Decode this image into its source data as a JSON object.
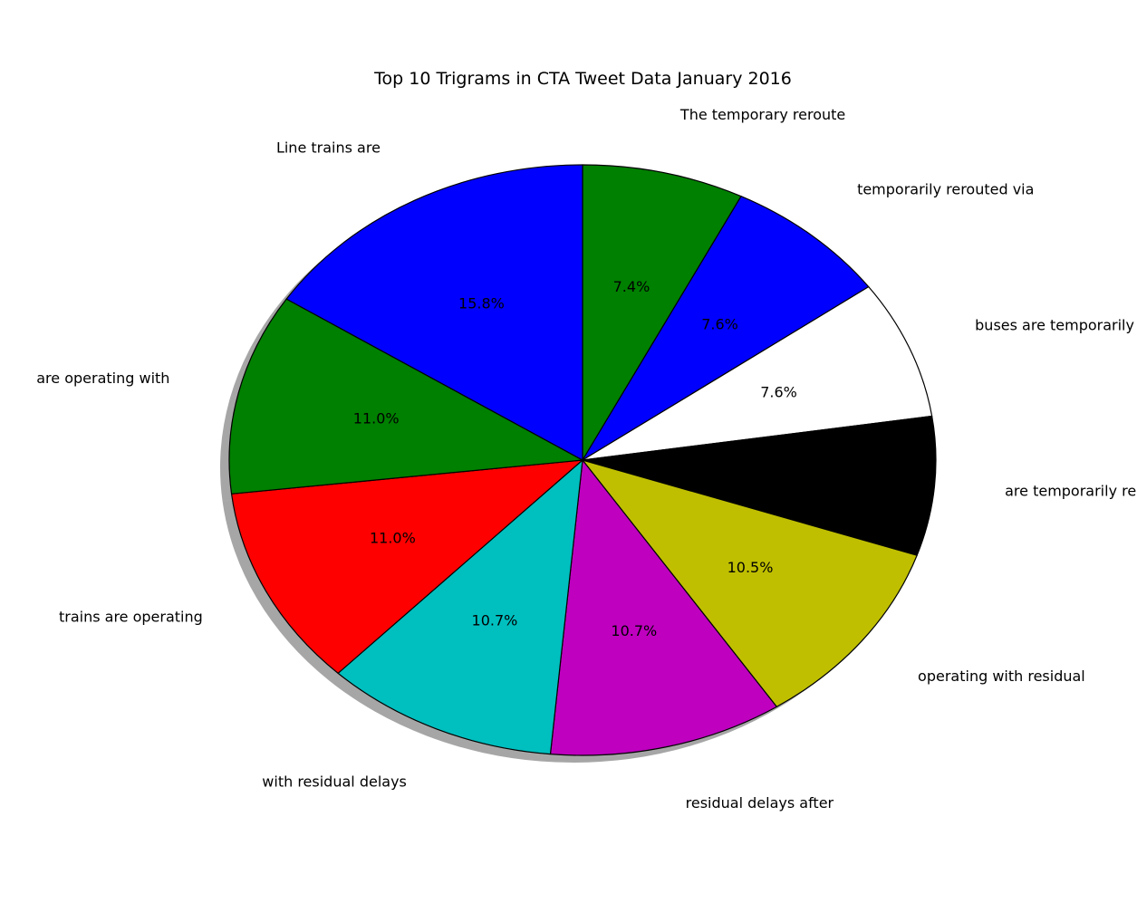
{
  "chart_data": {
    "type": "pie",
    "title": "Top 10 Trigrams in CTA Tweet Data January 2016",
    "slices": [
      {
        "label": "The temporary reroute",
        "value": 7.4,
        "pct_label": "7.4%",
        "color": "#008000"
      },
      {
        "label": "temporarily rerouted via",
        "value": 7.6,
        "pct_label": "7.6%",
        "color": "#0000ff"
      },
      {
        "label": "buses are temporarily",
        "value": 7.6,
        "pct_label": "7.6%",
        "color": "#ffffff"
      },
      {
        "label": "are temporarily rerouted",
        "value": 7.6,
        "pct_label": "",
        "color": "#000000"
      },
      {
        "label": "operating with residual",
        "value": 10.5,
        "pct_label": "10.5%",
        "color": "#bfbf00"
      },
      {
        "label": "residual delays after",
        "value": 10.7,
        "pct_label": "10.7%",
        "color": "#bf00bf"
      },
      {
        "label": "with residual delays",
        "value": 10.7,
        "pct_label": "10.7%",
        "color": "#00bfbf"
      },
      {
        "label": "trains are operating",
        "value": 11.0,
        "pct_label": "11.0%",
        "color": "#ff0000"
      },
      {
        "label": "are operating with",
        "value": 11.0,
        "pct_label": "11.0%",
        "color": "#008000"
      },
      {
        "label": "Line trains are",
        "value": 15.8,
        "pct_label": "15.8%",
        "color": "#0000ff"
      }
    ],
    "start_angle_deg": 90,
    "direction": "clockwise",
    "shadow": true,
    "legend": "none"
  }
}
